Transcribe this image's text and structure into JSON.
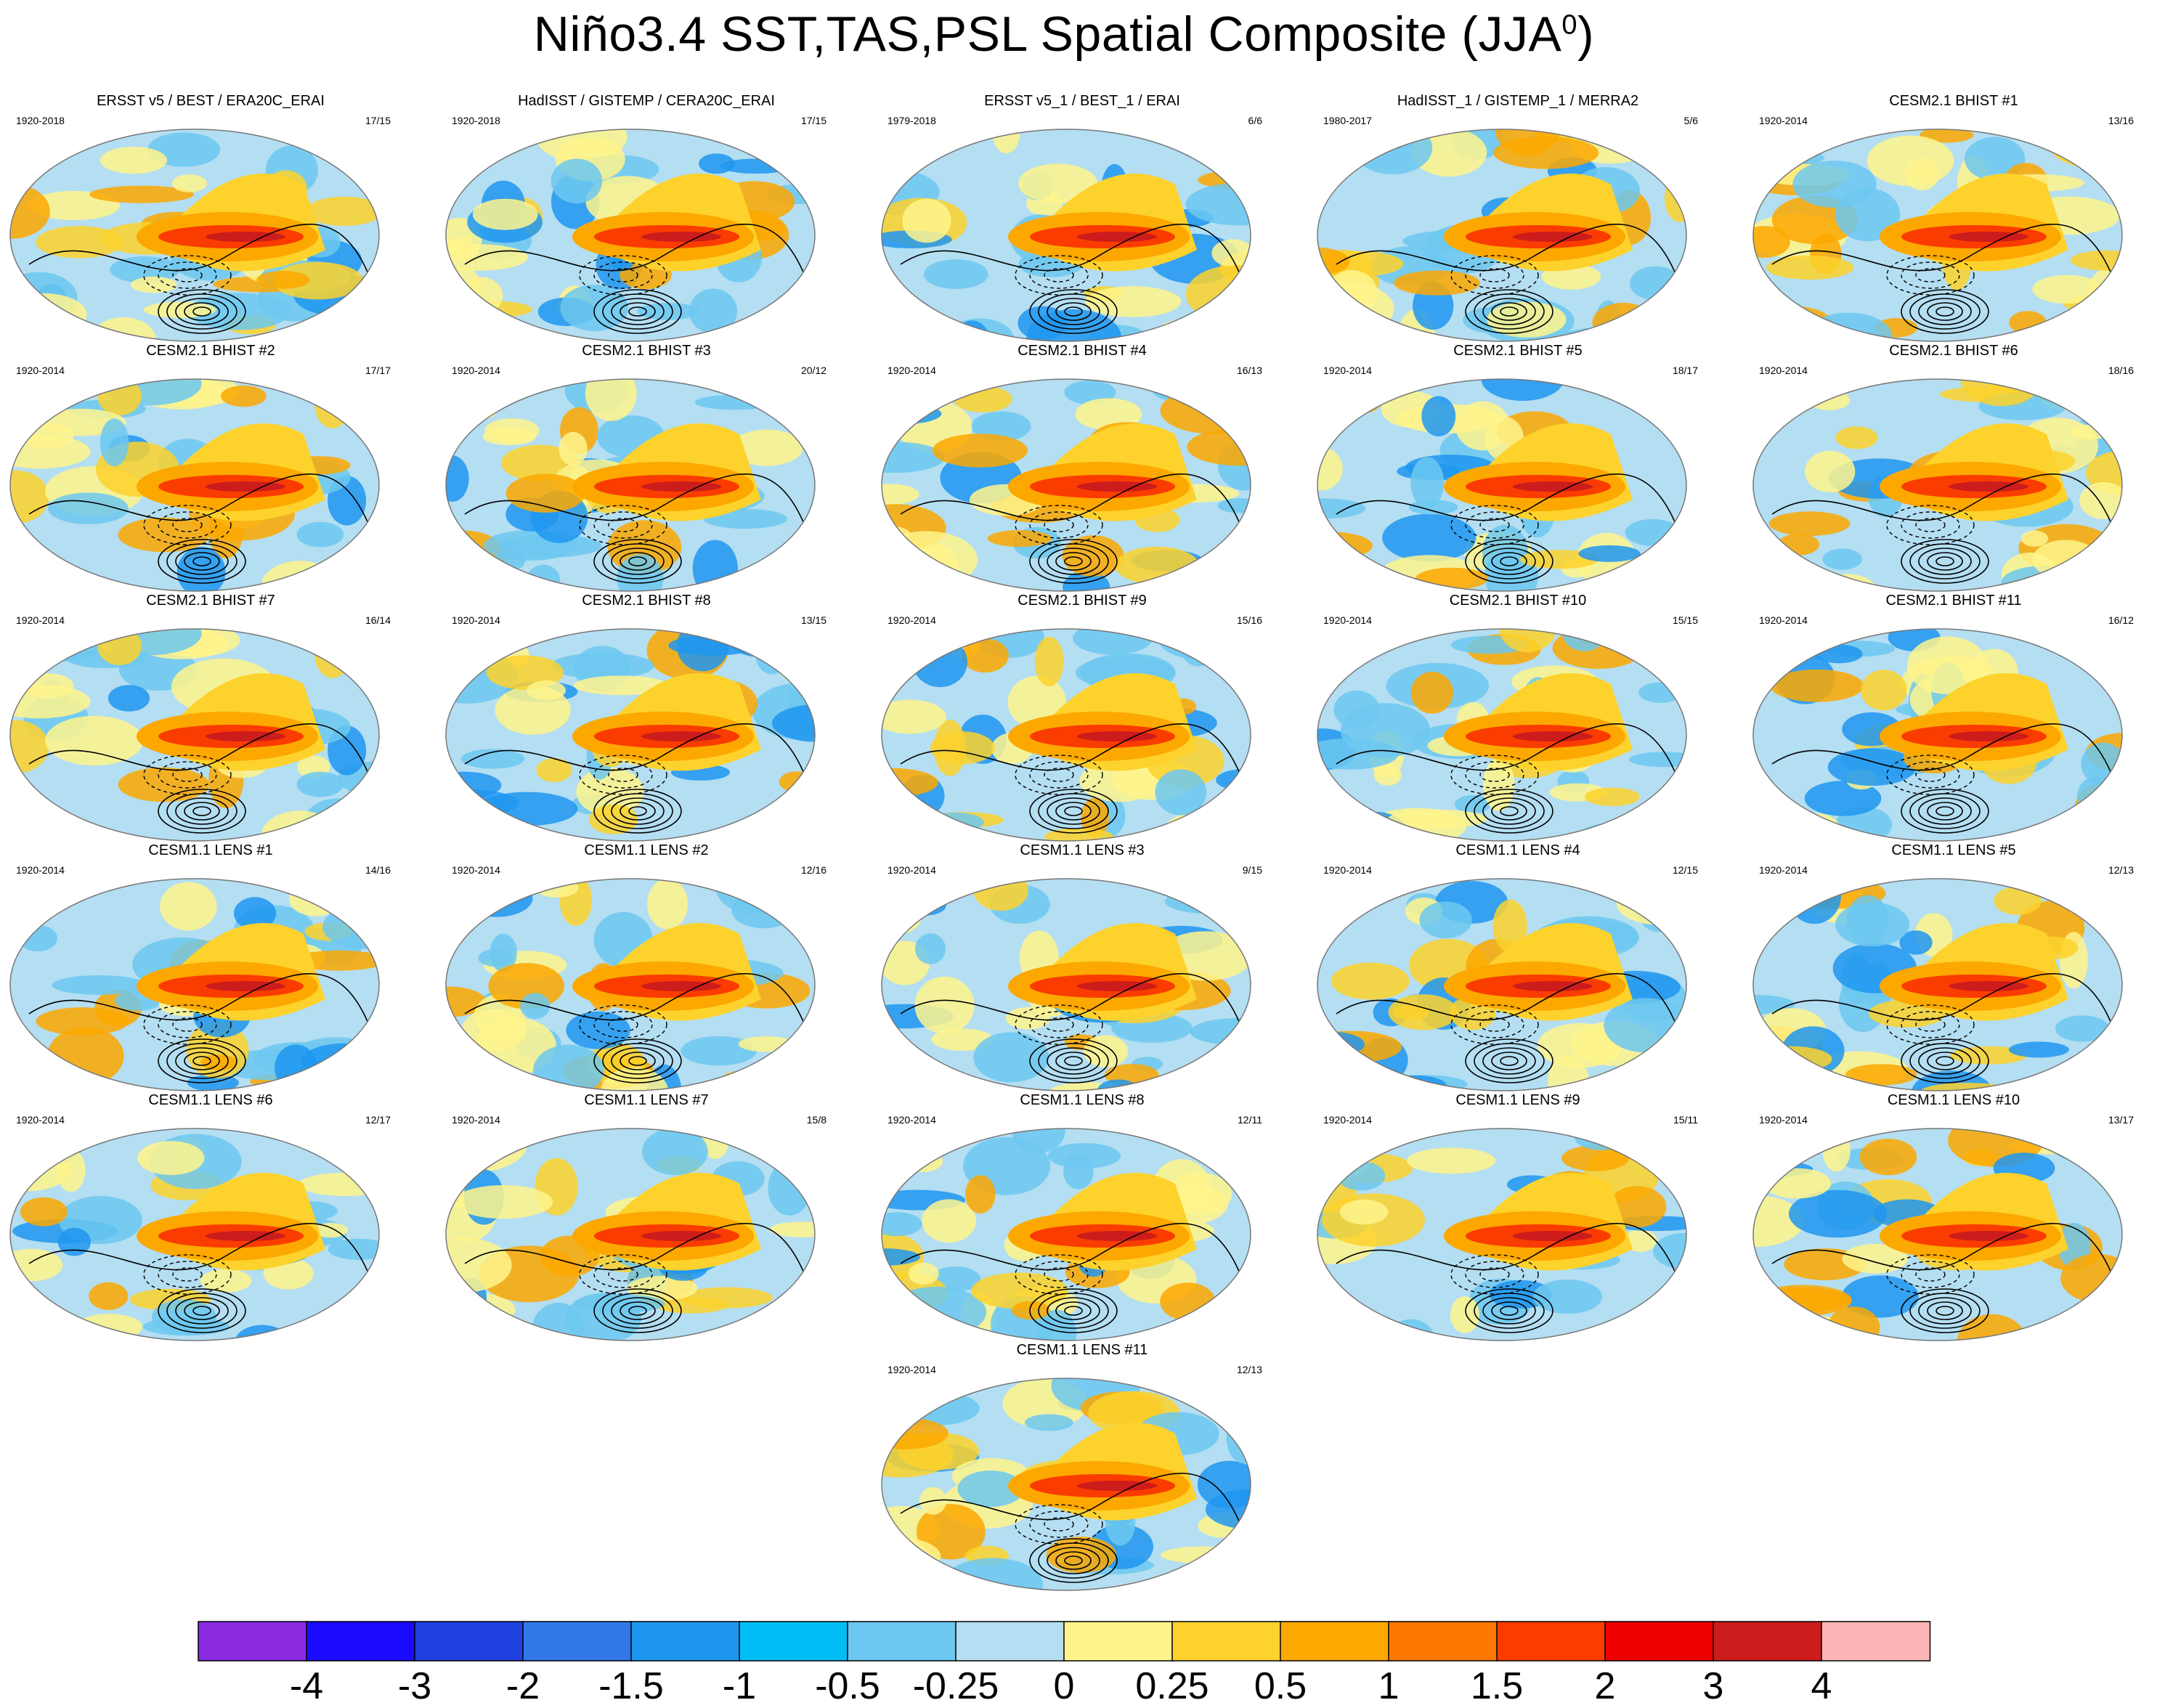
{
  "title": {
    "main": "Niño3.4 SST,TAS,PSL Spatial Composite (JJA",
    "superscript": "0",
    "closing": ")"
  },
  "chart_data": {
    "type": "map-panel-grid",
    "variables": [
      "SST",
      "TAS",
      "PSL"
    ],
    "season": "JJA0",
    "panels": [
      {
        "title": "ERSST v5 / BEST / ERA20C_ERAI",
        "years": "1920-2018",
        "count": "17/15"
      },
      {
        "title": "HadISST / GISTEMP / CERA20C_ERAI",
        "years": "1920-2018",
        "count": "17/15"
      },
      {
        "title": "ERSST v5_1 / BEST_1 / ERAI",
        "years": "1979-2018",
        "count": "6/6"
      },
      {
        "title": "HadISST_1 / GISTEMP_1 / MERRA2",
        "years": "1980-2017",
        "count": "5/6"
      },
      {
        "title": "CESM2.1 BHIST #1",
        "years": "1920-2014",
        "count": "13/16"
      },
      {
        "title": "CESM2.1 BHIST #2",
        "years": "1920-2014",
        "count": "17/17"
      },
      {
        "title": "CESM2.1 BHIST #3",
        "years": "1920-2014",
        "count": "20/12"
      },
      {
        "title": "CESM2.1 BHIST #4",
        "years": "1920-2014",
        "count": "16/13"
      },
      {
        "title": "CESM2.1 BHIST #5",
        "years": "1920-2014",
        "count": "18/17"
      },
      {
        "title": "CESM2.1 BHIST #6",
        "years": "1920-2014",
        "count": "18/16"
      },
      {
        "title": "CESM2.1 BHIST #7",
        "years": "1920-2014",
        "count": "16/14"
      },
      {
        "title": "CESM2.1 BHIST #8",
        "years": "1920-2014",
        "count": "13/15"
      },
      {
        "title": "CESM2.1 BHIST #9",
        "years": "1920-2014",
        "count": "15/16"
      },
      {
        "title": "CESM2.1 BHIST #10",
        "years": "1920-2014",
        "count": "15/15"
      },
      {
        "title": "CESM2.1 BHIST #11",
        "years": "1920-2014",
        "count": "16/12"
      },
      {
        "title": "CESM1.1 LENS #1",
        "years": "1920-2014",
        "count": "14/16"
      },
      {
        "title": "CESM1.1 LENS #2",
        "years": "1920-2014",
        "count": "12/16"
      },
      {
        "title": "CESM1.1 LENS #3",
        "years": "1920-2014",
        "count": "9/15"
      },
      {
        "title": "CESM1.1 LENS #4",
        "years": "1920-2014",
        "count": "12/15"
      },
      {
        "title": "CESM1.1 LENS #5",
        "years": "1920-2014",
        "count": "12/13"
      },
      {
        "title": "CESM1.1 LENS #6",
        "years": "1920-2014",
        "count": "12/17"
      },
      {
        "title": "CESM1.1 LENS #7",
        "years": "1920-2014",
        "count": "15/8"
      },
      {
        "title": "CESM1.1 LENS #8",
        "years": "1920-2014",
        "count": "12/11"
      },
      {
        "title": "CESM1.1 LENS #9",
        "years": "1920-2014",
        "count": "15/11"
      },
      {
        "title": "CESM1.1 LENS #10",
        "years": "1920-2014",
        "count": "13/17"
      },
      {
        "title": "CESM1.1 LENS #11",
        "years": "1920-2014",
        "count": "12/13"
      }
    ],
    "colorbar": {
      "labels": [
        "-4",
        "-3",
        "-2",
        "-1.5",
        "-1",
        "-0.5",
        "-0.25",
        "0",
        "0.25",
        "0.5",
        "1",
        "1.5",
        "2",
        "3",
        "4"
      ],
      "colors": [
        "#8a2be2",
        "#1a0aff",
        "#2040e0",
        "#3278e8",
        "#1e96f0",
        "#00bef5",
        "#6cc8f0",
        "#b4def2",
        "#fff48c",
        "#fdd22c",
        "#fca800",
        "#fc7800",
        "#fa3c00",
        "#ee0000",
        "#cc1c1c",
        "#fcb4b4"
      ]
    }
  }
}
